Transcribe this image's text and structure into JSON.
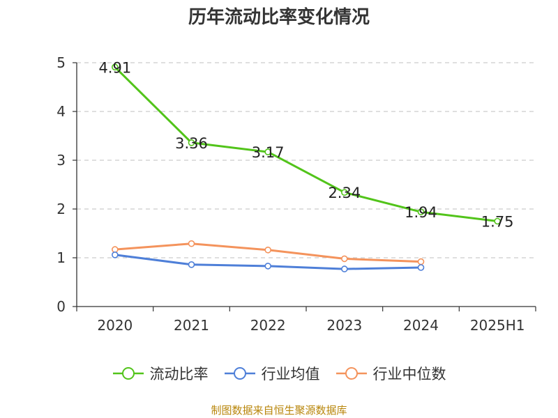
{
  "chart_data": {
    "type": "line",
    "title": "历年流动比率变化情况",
    "categories": [
      "2020",
      "2021",
      "2022",
      "2023",
      "2024",
      "2025H1"
    ],
    "ylim": [
      0,
      5
    ],
    "yticks": [
      "0",
      "1",
      "2",
      "3",
      "4",
      "5"
    ],
    "grid": true,
    "legend_position": "bottom",
    "series": [
      {
        "name": "流动比率",
        "color": "#52c41a",
        "values": [
          4.91,
          3.36,
          3.17,
          2.34,
          1.94,
          1.75
        ],
        "labels": [
          "4.91",
          "3.36",
          "3.17",
          "2.34",
          "1.94",
          "1.75"
        ]
      },
      {
        "name": "行业均值",
        "color": "#4e7fd8",
        "values": [
          1.06,
          0.86,
          0.83,
          0.77,
          0.8,
          null
        ]
      },
      {
        "name": "行业中位数",
        "color": "#f4935c",
        "values": [
          1.17,
          1.29,
          1.16,
          0.98,
          0.92,
          null
        ]
      }
    ]
  },
  "source": "制图数据来自恒生聚源数据库"
}
